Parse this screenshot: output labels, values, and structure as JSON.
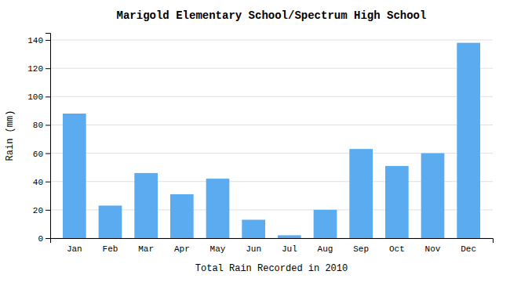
{
  "chart_data": {
    "type": "bar",
    "title": "Marigold Elementary School/Spectrum High School",
    "xlabel": "Total Rain Recorded in 2010",
    "ylabel": "Rain (mm)",
    "categories": [
      "Jan",
      "Feb",
      "Mar",
      "Apr",
      "May",
      "Jun",
      "Jul",
      "Aug",
      "Sep",
      "Oct",
      "Nov",
      "Dec"
    ],
    "values": [
      88,
      23,
      46,
      31,
      42,
      13,
      2,
      20,
      63,
      51,
      60,
      138
    ],
    "color": "#5aabf0",
    "ylim": [
      0,
      145
    ],
    "yticks": [
      0,
      20,
      40,
      60,
      80,
      100,
      120,
      140
    ],
    "grid": true
  }
}
